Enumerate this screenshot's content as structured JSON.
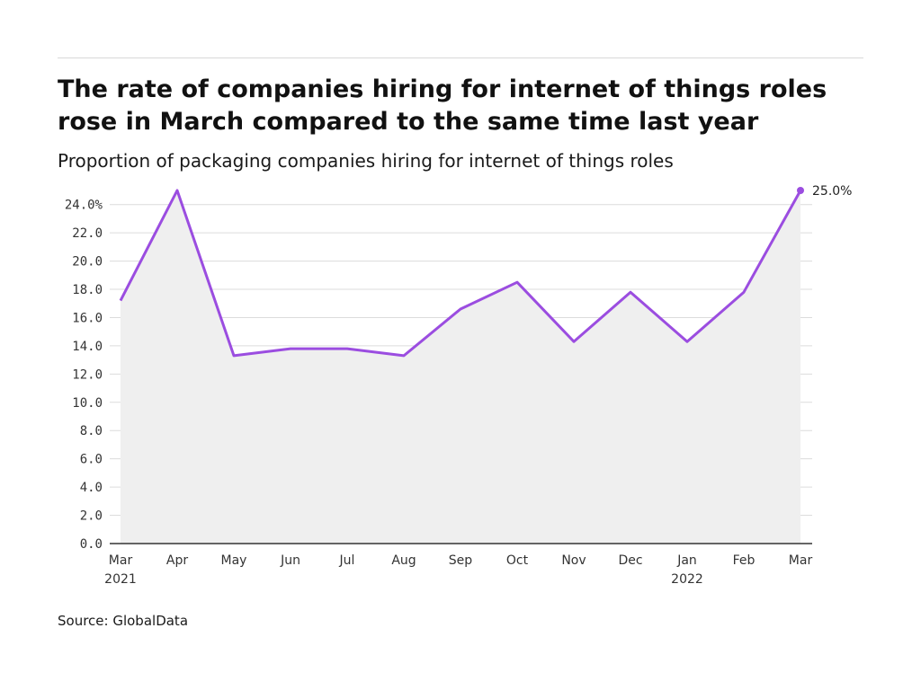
{
  "header": {
    "title": "The rate of companies hiring for internet of things roles rose in March compared to the same time last year",
    "subtitle": "Proportion of packaging companies hiring for internet of things roles"
  },
  "footer": {
    "source": "Source: GlobalData"
  },
  "colors": {
    "line": "#9b4de0",
    "area": "#efefef",
    "grid": "#dcdcdc",
    "axis": "#333333"
  },
  "chart_data": {
    "type": "area",
    "title": "The rate of companies hiring for internet of things roles rose in March compared to the same time last year",
    "subtitle": "Proportion of packaging companies hiring for internet of things roles",
    "categories": [
      "Mar",
      "Apr",
      "May",
      "Jun",
      "Jul",
      "Aug",
      "Sep",
      "Oct",
      "Nov",
      "Dec",
      "Jan",
      "Feb",
      "Mar"
    ],
    "year_labels": [
      "2021",
      "",
      "",
      "",
      "",
      "",
      "",
      "",
      "",
      "",
      "2022",
      "",
      ""
    ],
    "series": [
      {
        "values": [
          17.2,
          25.0,
          13.3,
          13.8,
          13.8,
          13.3,
          16.6,
          18.5,
          14.3,
          17.8,
          14.3,
          17.8,
          25.0
        ]
      }
    ],
    "ylim": [
      0,
      25
    ],
    "yticks": [
      0,
      2,
      4,
      6,
      8,
      10,
      12,
      14,
      16,
      18,
      20,
      22,
      24
    ],
    "ytick_labels": [
      "0.0",
      "2.0",
      "4.0",
      "6.0",
      "8.0",
      "10.0",
      "12.0",
      "14.0",
      "16.0",
      "18.0",
      "20.0",
      "22.0",
      "24.0%"
    ],
    "end_label": "25.0%",
    "grid": true,
    "xlabel": "",
    "ylabel": ""
  }
}
